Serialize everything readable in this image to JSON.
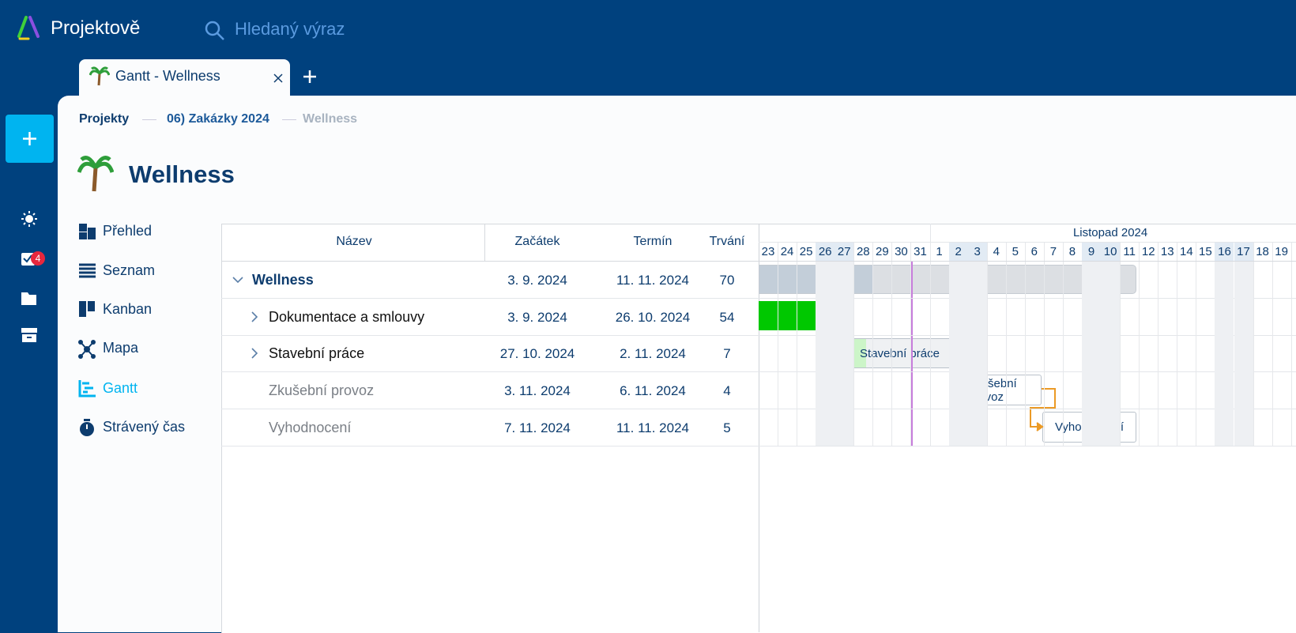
{
  "header": {
    "brand": "Projektově",
    "search_placeholder": "Hledaný výraz"
  },
  "sidebar": {
    "badge": "4"
  },
  "tabs": [
    {
      "title": "Gantt - Wellness"
    }
  ],
  "breadcrumb": [
    "Projekty",
    "06) Zakázky 2024",
    "Wellness"
  ],
  "page_title": "Wellness",
  "nav": [
    "Přehled",
    "Seznam",
    "Kanban",
    "Mapa",
    "Gantt",
    "Strávený čas"
  ],
  "table": {
    "columns": [
      "Název",
      "Začátek",
      "Termín",
      "Trvání"
    ],
    "rows": [
      [
        "Wellness",
        "3. 9. 2024",
        "11. 11. 2024",
        70
      ],
      [
        "Dokumentace a smlouvy",
        "3. 9. 2024",
        "26. 10. 2024",
        54
      ],
      [
        "Stavební práce",
        "27. 10. 2024",
        "2. 11. 2024",
        7
      ],
      [
        "Zkušební provoz",
        "3. 11. 2024",
        "6. 11. 2024",
        4
      ],
      [
        "Vyhodnocení",
        "7. 11. 2024",
        "11. 11. 2024",
        5
      ]
    ]
  },
  "gantt": {
    "month": "Listopad 2024",
    "days": [
      23,
      24,
      25,
      26,
      27,
      28,
      29,
      30,
      31,
      1,
      2,
      3,
      4,
      5,
      6,
      7,
      8,
      9,
      10,
      11,
      12,
      13,
      14,
      15,
      16,
      17,
      18,
      19
    ]
  }
}
